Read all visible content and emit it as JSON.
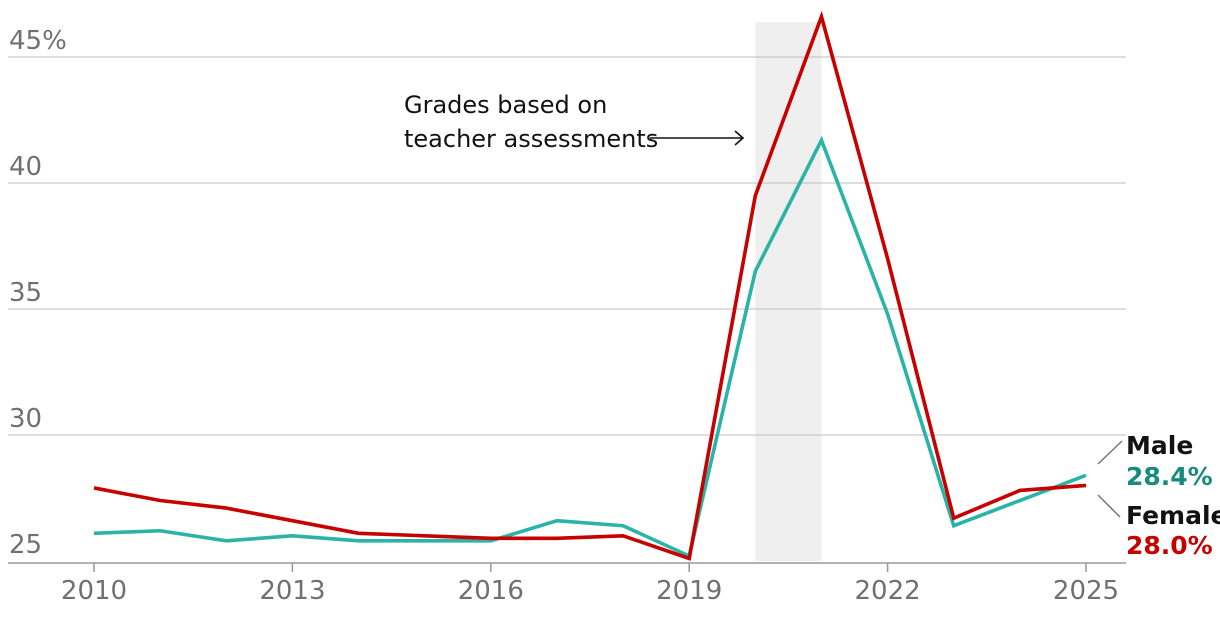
{
  "chart_data": {
    "type": "line",
    "title": "",
    "xlabel": "",
    "ylabel": "",
    "x": [
      2010,
      2011,
      2012,
      2013,
      2014,
      2015,
      2016,
      2017,
      2018,
      2019,
      2020,
      2021,
      2022,
      2023,
      2024,
      2025
    ],
    "ylim": [
      24.5,
      46.5
    ],
    "yticks": [
      25,
      30,
      35,
      40,
      45
    ],
    "ytick_labels": [
      "25",
      "30",
      "35",
      "40",
      "45%"
    ],
    "xticks": [
      2010,
      2013,
      2016,
      2019,
      2022,
      2025
    ],
    "xtick_labels": [
      "2010",
      "2013",
      "2016",
      "2019",
      "2022",
      "2025"
    ],
    "grid": "horizontal",
    "series": [
      {
        "name": "Male",
        "color": "#2bb3a6",
        "value_color": "#1a8a7e",
        "end_label": "28.4%",
        "values": [
          26.1,
          26.2,
          25.8,
          26.0,
          25.8,
          25.8,
          25.8,
          26.6,
          26.4,
          25.2,
          36.5,
          41.7,
          34.8,
          26.4,
          27.4,
          28.4
        ]
      },
      {
        "name": "Female",
        "color": "#c70000",
        "value_color": "#c70000",
        "end_label": "28.0%",
        "values": [
          27.9,
          27.4,
          27.1,
          26.6,
          26.1,
          26.0,
          25.9,
          25.9,
          26.0,
          25.1,
          39.5,
          46.6,
          37.0,
          26.7,
          27.8,
          28.0
        ]
      }
    ],
    "highlight_band": {
      "x_from": 2020,
      "x_to": 2021
    },
    "annotation": {
      "lines": [
        "Grades based on",
        "teacher assessments"
      ],
      "arrow": "right"
    }
  }
}
